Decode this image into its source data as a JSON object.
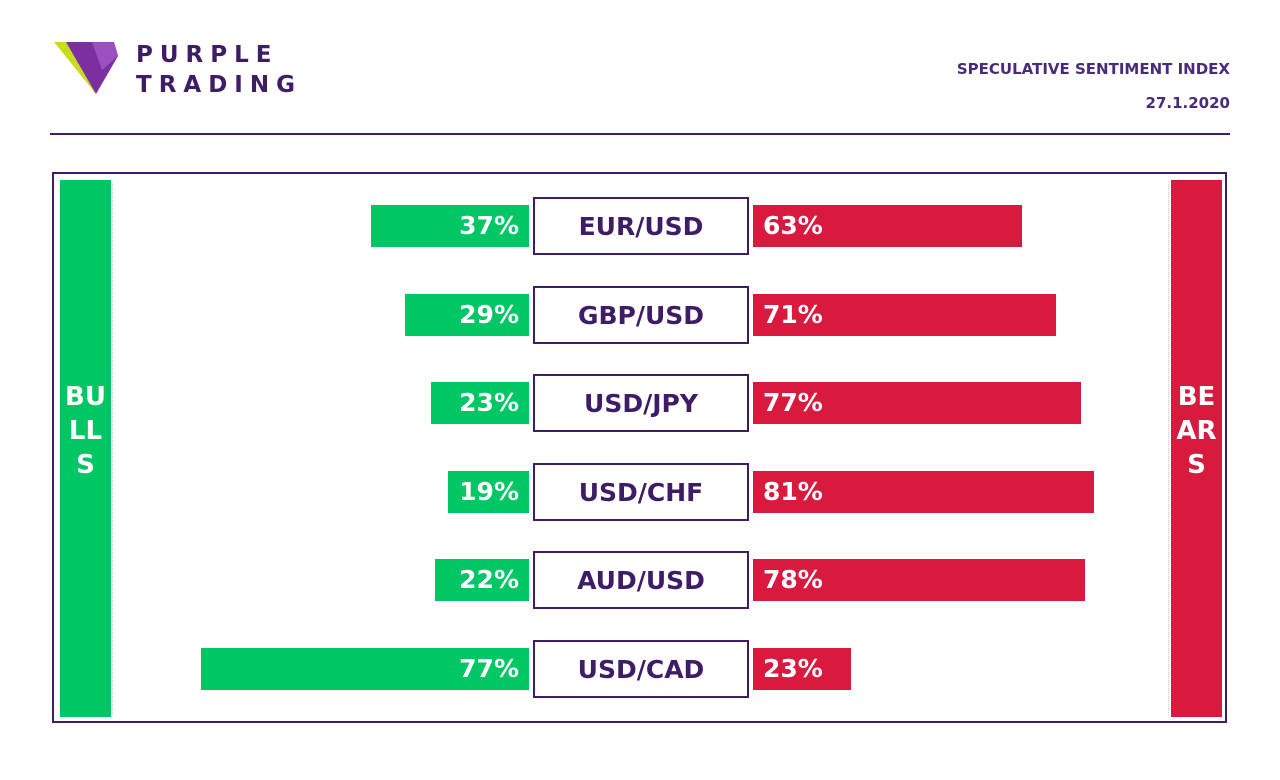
{
  "brand": {
    "line1": "PURPLE",
    "line2": "TRADING",
    "colors": {
      "purple": "#3f1c66",
      "lime": "#c8dc1e",
      "violet": "#8a3fa8"
    },
    "icon": "purple-trading-logo-icon"
  },
  "header": {
    "title": "SPECULATIVE SENTIMENT INDEX",
    "date": "27.1.2020"
  },
  "chart_data": {
    "type": "bar",
    "orientation": "horizontal-diverging",
    "left_label": "BULLS",
    "right_label": "BEARS",
    "colors": {
      "bulls": "#00c664",
      "bears": "#d91a3f",
      "label": "#3f1c66"
    },
    "categories": [
      "EUR/USD",
      "GBP/USD",
      "USD/JPY",
      "USD/CHF",
      "AUD/USD",
      "USD/CAD"
    ],
    "series": [
      {
        "name": "BULLS",
        "values": [
          37,
          29,
          23,
          19,
          22,
          77
        ]
      },
      {
        "name": "BEARS",
        "values": [
          63,
          71,
          77,
          81,
          78,
          23
        ]
      }
    ],
    "unit": "%",
    "bar_cap": 80
  }
}
